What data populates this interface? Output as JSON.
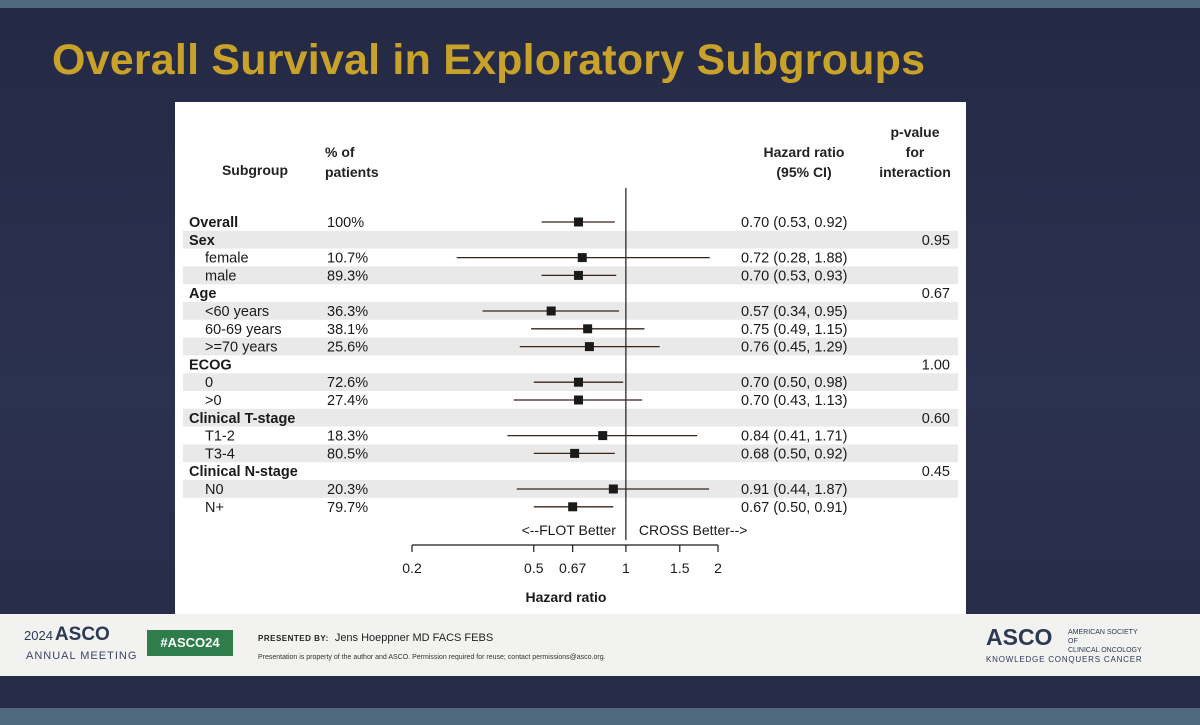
{
  "slide": {
    "title": "Overall Survival in Exploratory Subgroups"
  },
  "table_headers": {
    "subgroup": "Subgroup",
    "pct": "% of\npatients",
    "hr": "Hazard ratio\n(95% CI)",
    "pint": "p-value\nfor\ninteraction"
  },
  "chart_data": {
    "type": "forest",
    "title": "Overall Survival in Exploratory Subgroups",
    "xlabel": "Hazard ratio",
    "xscale": "log",
    "xlim": [
      0.2,
      2
    ],
    "xticks": [
      0.2,
      0.5,
      0.67,
      1,
      1.5,
      2
    ],
    "xtick_labels": [
      "0.2",
      "0.5",
      "0.67",
      "1",
      "1.5",
      "2"
    ],
    "reference_line": 1,
    "left_annotation": "<--FLOT Better",
    "right_annotation": "CROSS Better-->",
    "rows": [
      {
        "label": "Overall",
        "header": true,
        "pct": "100%",
        "hr": 0.7,
        "lo": 0.53,
        "hi": 0.92,
        "ci_text": "0.70 (0.53, 0.92)",
        "p": ""
      },
      {
        "label": "Sex",
        "header": true,
        "pct": "",
        "hr": null,
        "lo": null,
        "hi": null,
        "ci_text": "",
        "p": "0.95"
      },
      {
        "label": "female",
        "header": false,
        "pct": "10.7%",
        "hr": 0.72,
        "lo": 0.28,
        "hi": 1.88,
        "ci_text": "0.72 (0.28, 1.88)",
        "p": ""
      },
      {
        "label": "male",
        "header": false,
        "pct": "89.3%",
        "hr": 0.7,
        "lo": 0.53,
        "hi": 0.93,
        "ci_text": "0.70 (0.53, 0.93)",
        "p": ""
      },
      {
        "label": "Age",
        "header": true,
        "pct": "",
        "hr": null,
        "lo": null,
        "hi": null,
        "ci_text": "",
        "p": "0.67"
      },
      {
        "label": "<60 years",
        "header": false,
        "pct": "36.3%",
        "hr": 0.57,
        "lo": 0.34,
        "hi": 0.95,
        "ci_text": "0.57 (0.34, 0.95)",
        "p": ""
      },
      {
        "label": "60-69 years",
        "header": false,
        "pct": "38.1%",
        "hr": 0.75,
        "lo": 0.49,
        "hi": 1.15,
        "ci_text": "0.75 (0.49, 1.15)",
        "p": ""
      },
      {
        "label": ">=70 years",
        "header": false,
        "pct": "25.6%",
        "hr": 0.76,
        "lo": 0.45,
        "hi": 1.29,
        "ci_text": "0.76 (0.45, 1.29)",
        "p": ""
      },
      {
        "label": "ECOG",
        "header": true,
        "pct": "",
        "hr": null,
        "lo": null,
        "hi": null,
        "ci_text": "",
        "p": "1.00"
      },
      {
        "label": "0",
        "header": false,
        "pct": "72.6%",
        "hr": 0.7,
        "lo": 0.5,
        "hi": 0.98,
        "ci_text": "0.70 (0.50, 0.98)",
        "p": ""
      },
      {
        "label": ">0",
        "header": false,
        "pct": "27.4%",
        "hr": 0.7,
        "lo": 0.43,
        "hi": 1.13,
        "ci_text": "0.70 (0.43, 1.13)",
        "p": ""
      },
      {
        "label": "Clinical T-stage",
        "header": true,
        "pct": "",
        "hr": null,
        "lo": null,
        "hi": null,
        "ci_text": "",
        "p": "0.60"
      },
      {
        "label": "T1-2",
        "header": false,
        "pct": "18.3%",
        "hr": 0.84,
        "lo": 0.41,
        "hi": 1.71,
        "ci_text": "0.84 (0.41, 1.71)",
        "p": ""
      },
      {
        "label": "T3-4",
        "header": false,
        "pct": "80.5%",
        "hr": 0.68,
        "lo": 0.5,
        "hi": 0.92,
        "ci_text": "0.68 (0.50, 0.92)",
        "p": ""
      },
      {
        "label": "Clinical N-stage",
        "header": true,
        "pct": "",
        "hr": null,
        "lo": null,
        "hi": null,
        "ci_text": "",
        "p": "0.45"
      },
      {
        "label": "N0",
        "header": false,
        "pct": "20.3%",
        "hr": 0.91,
        "lo": 0.44,
        "hi": 1.87,
        "ci_text": "0.91 (0.44, 1.87)",
        "p": ""
      },
      {
        "label": "N+",
        "header": false,
        "pct": "79.7%",
        "hr": 0.67,
        "lo": 0.5,
        "hi": 0.91,
        "ci_text": "0.67 (0.50, 0.91)",
        "p": ""
      }
    ]
  },
  "footer": {
    "year": "2024",
    "asco": "ASCO",
    "meeting": "ANNUAL MEETING",
    "hashtag": "#ASCO24",
    "presented_label": "PRESENTED BY:",
    "presenter": "Jens Hoeppner MD FACS FEBS",
    "disclaimer": "Presentation is property of the author and ASCO. Permission required for reuse; contact permissions@asco.org.",
    "logo": "ASCO",
    "society": "AMERICAN SOCIETY OF\nCLINICAL ONCOLOGY",
    "tagline": "KNOWLEDGE CONQUERS CANCER"
  },
  "colors": {
    "title": "#c9a22a",
    "shade": "#e9e9e9",
    "marker": "#1a1a1a",
    "ci_line": "#3a2418",
    "ref_line": "#1a1a1a",
    "hashtag_bg": "#2e7d4a"
  }
}
